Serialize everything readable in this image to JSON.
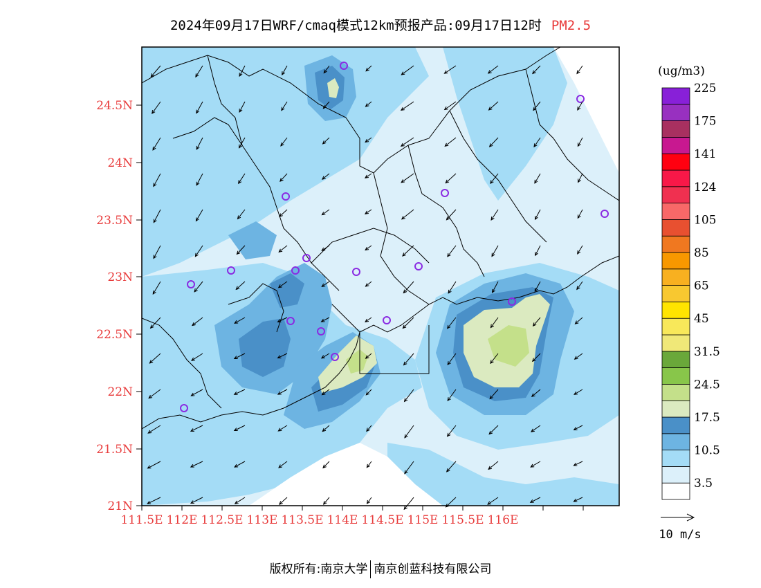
{
  "title": {
    "text": "2024年09月17日WRF/cmaq模式12km预报产品:09月17日12时",
    "pollutant": "PM2.5"
  },
  "map": {
    "lat_ticks": [
      "21N",
      "21.5N",
      "22N",
      "22.5N",
      "23N",
      "23.5N",
      "24N",
      "24.5N"
    ],
    "lon_ticks": [
      "111.5E",
      "112E",
      "112.5E",
      "113E",
      "113.5E",
      "114E",
      "114.5E",
      "115E",
      "115.5E",
      "116E"
    ],
    "tick_color": "#e83a3a"
  },
  "legend": {
    "unit": "(ug/m3)",
    "labels": [
      "3.5",
      "10.5",
      "17.5",
      "24.5",
      "31.5",
      "45",
      "65",
      "85",
      "105",
      "124",
      "141",
      "175",
      "225"
    ],
    "colors": [
      "#ffffff",
      "#dcf0fa",
      "#a4dcf6",
      "#6db4e2",
      "#4a90c8",
      "#dbeac0",
      "#c4e08a",
      "#88c64a",
      "#6aa83a",
      "#f0e878",
      "#f8e85a",
      "#ffe400",
      "#f8c830",
      "#f8b020",
      "#f89800",
      "#f07820",
      "#e85030",
      "#f86868",
      "#f03050",
      "#f81848",
      "#ff0010",
      "#c81890",
      "#a83060",
      "#9830c0",
      "#8820d8"
    ]
  },
  "wind_scale": {
    "label": "10 m/s"
  },
  "footer": {
    "left": "版权所有:南京大学",
    "right": "南京创蓝科技有限公司"
  }
}
